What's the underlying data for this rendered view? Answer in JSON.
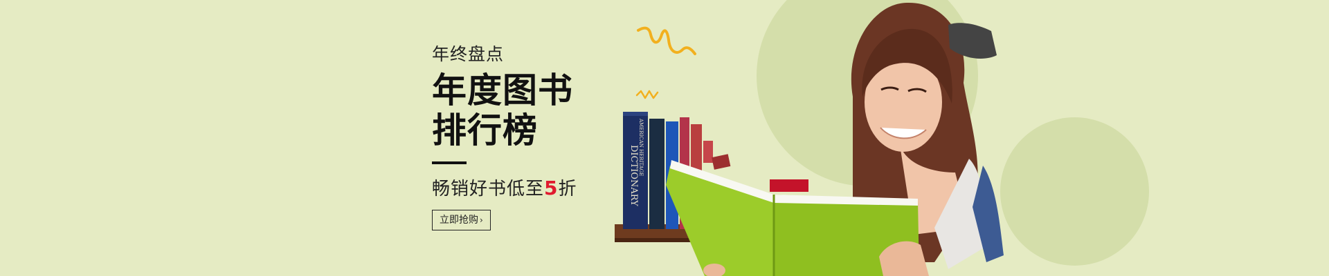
{
  "promo": {
    "subtitle": "年终盘点",
    "title_line1": "年度图书",
    "title_line2": "排行榜",
    "tagline_before": "畅销好书低至",
    "tagline_number": "5",
    "tagline_after": "折",
    "cta_label": "立即抢购",
    "cta_chevron": "›"
  },
  "books": {
    "dictionary_spine_top": "AMERICAN HERITAGE",
    "dictionary_spine_title": "DICTIONARY"
  },
  "colors": {
    "background": "#e5ebc3",
    "circle": "#d4deaa",
    "accent": "#e01b2f",
    "squiggle": "#f2b01e",
    "book_green": "#9ccc2a"
  }
}
